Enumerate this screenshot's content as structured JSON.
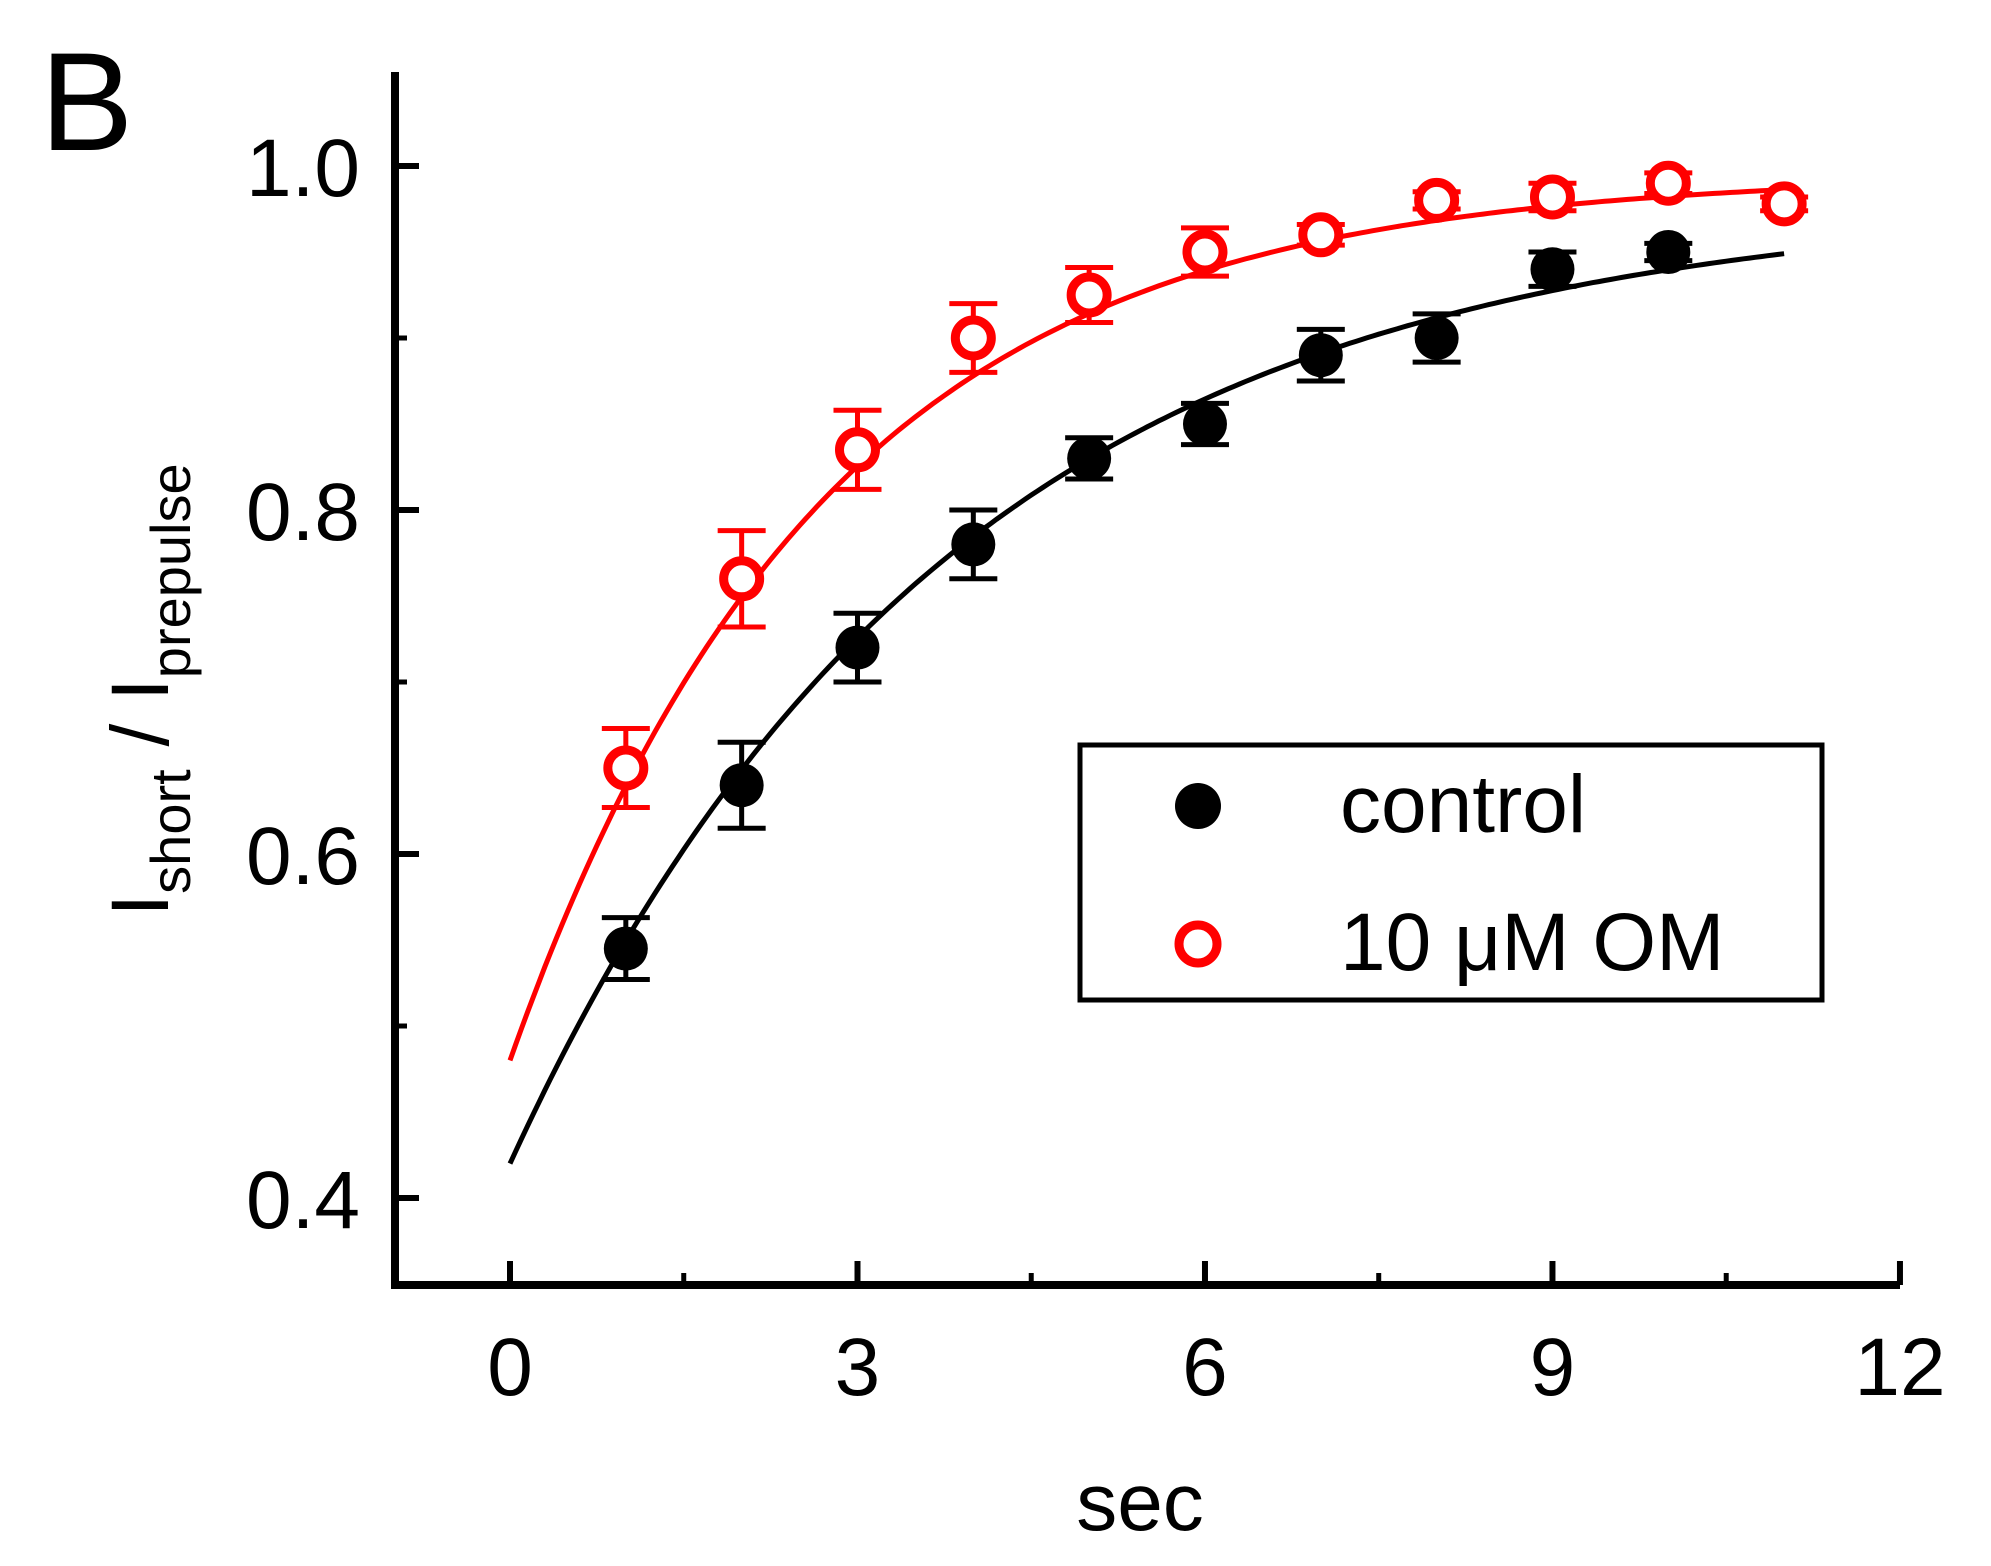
{
  "chart_data": {
    "type": "scatter",
    "panel_label": "B",
    "title": "",
    "xlabel": "sec",
    "ylabel": {
      "main_1": "I",
      "sub_1": "short",
      "sep": " / ",
      "main_2": "I",
      "sub_2": "prepulse"
    },
    "xlim": [
      -1,
      12
    ],
    "ylim": [
      0.35,
      1.05
    ],
    "xticks": [
      0,
      3,
      6,
      9,
      12
    ],
    "xtick_labels": [
      "0",
      "3",
      "6",
      "9",
      "12"
    ],
    "xminor_ticks": [
      1.5,
      4.5,
      7.5,
      10.5
    ],
    "yticks": [
      0.4,
      0.6,
      0.8,
      1.0
    ],
    "ytick_labels": [
      "0.4",
      "0.6",
      "0.8",
      "1.0"
    ],
    "yminor_ticks": [
      0.5,
      0.7,
      0.9
    ],
    "grid": false,
    "legend_position": "center-right",
    "series": [
      {
        "name": "control",
        "color": "#000000",
        "marker": "filled-circle",
        "x": [
          1,
          2,
          3,
          4,
          5,
          6,
          7,
          8,
          9,
          10
        ],
        "y": [
          0.545,
          0.64,
          0.72,
          0.78,
          0.83,
          0.85,
          0.89,
          0.9,
          0.94,
          0.95
        ],
        "err": [
          0.018,
          0.025,
          0.02,
          0.02,
          0.012,
          0.012,
          0.015,
          0.014,
          0.01,
          0.005
        ],
        "fit": {
          "type": "exponential",
          "y0": 0.42,
          "plateau": 0.98,
          "tau": 3.8,
          "x_range": [
            0,
            11
          ]
        }
      },
      {
        "name": "10 μM OM",
        "color": "#ff0000",
        "marker": "open-circle",
        "x": [
          1,
          2,
          3,
          4,
          5,
          6,
          7,
          8,
          9,
          10,
          11
        ],
        "y": [
          0.65,
          0.76,
          0.835,
          0.9,
          0.925,
          0.95,
          0.96,
          0.98,
          0.982,
          0.99,
          0.978
        ],
        "err": [
          0.023,
          0.028,
          0.023,
          0.02,
          0.016,
          0.014,
          0.006,
          0.005,
          0.008,
          0.006,
          0.004
        ],
        "fit": {
          "type": "exponential",
          "y0": 0.48,
          "plateau": 0.995,
          "tau": 2.7,
          "x_range": [
            0,
            11
          ]
        }
      }
    ]
  }
}
